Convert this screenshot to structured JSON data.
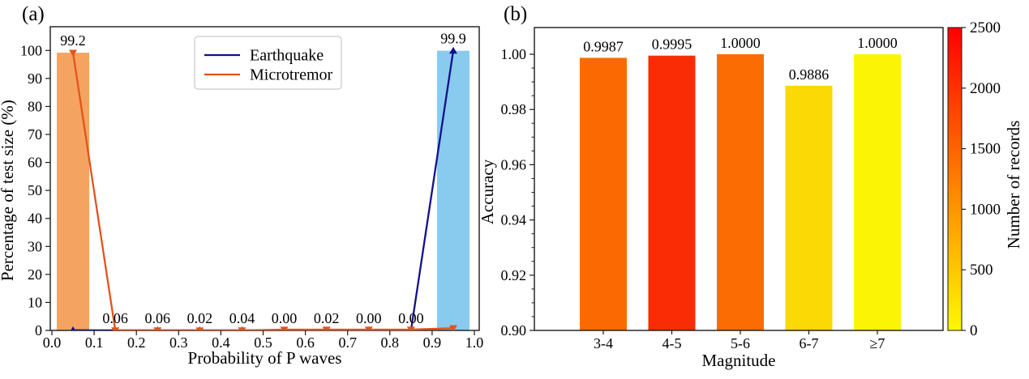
{
  "figure": {
    "background": "#ffffff"
  },
  "chart_data": [
    {
      "id": "a",
      "type": "bar+line",
      "panel_label": "(a)",
      "xlabel": "Probability of P waves",
      "ylabel": "Percentage of test size (%)",
      "xlim": [
        0.0,
        1.0
      ],
      "ylim": [
        0,
        100
      ],
      "xticks": [
        "0.0",
        "0.1",
        "0.2",
        "0.3",
        "0.4",
        "0.5",
        "0.6",
        "0.7",
        "0.8",
        "0.9",
        "1.0"
      ],
      "yticks": [
        0,
        10,
        20,
        30,
        40,
        50,
        60,
        70,
        80,
        90,
        100
      ],
      "x": [
        0.05,
        0.15,
        0.25,
        0.35,
        0.45,
        0.55,
        0.65,
        0.75,
        0.85,
        0.95
      ],
      "series": [
        {
          "name": "Earthquake",
          "color": "#11118B",
          "marker": "triangle-up",
          "values": [
            0.05,
            0.02,
            0.02,
            0.02,
            0.02,
            0.0,
            0.02,
            0.0,
            0.0,
            99.9
          ],
          "point_labels": [
            null,
            null,
            null,
            null,
            null,
            "0.00",
            "0.02",
            "0.00",
            "0.00",
            "99.9"
          ]
        },
        {
          "name": "Microtremor",
          "color": "#E4521B",
          "marker": "triangle-down",
          "values": [
            99.2,
            0.06,
            0.06,
            0.02,
            0.04,
            0.3,
            0.3,
            0.3,
            0.3,
            0.8
          ],
          "point_labels": [
            "99.2",
            "0.06",
            "0.06",
            "0.02",
            "0.04",
            null,
            null,
            null,
            null,
            null
          ]
        }
      ],
      "bars": [
        {
          "x": 0.05,
          "height": 99.2,
          "color": "#F4A460",
          "series": "Microtremor"
        },
        {
          "x": 0.95,
          "height": 99.9,
          "color": "#89CBEE",
          "series": "Earthquake"
        }
      ],
      "legend": {
        "position": "upper-left-of-center",
        "entries": [
          "Earthquake",
          "Microtremor"
        ]
      }
    },
    {
      "id": "b",
      "type": "bar",
      "panel_label": "(b)",
      "xlabel": "Magnitude",
      "ylabel": "Accuracy",
      "categories": [
        "3-4",
        "4-5",
        "5-6",
        "6-7",
        "≥7"
      ],
      "values": [
        0.9987,
        0.9995,
        1.0,
        0.9886,
        1.0
      ],
      "value_labels": [
        "0.9987",
        "0.9995",
        "1.0000",
        "0.9886",
        "1.0000"
      ],
      "bar_colors": [
        "#FB6A02",
        "#FA2C06",
        "#FB6C02",
        "#FAD905",
        "#FBF505"
      ],
      "ylim": [
        0.9,
        1.0
      ],
      "yticks": [
        "0.90",
        "0.92",
        "0.94",
        "0.96",
        "0.98",
        "1.00"
      ],
      "colorbar": {
        "label": "Number of records",
        "ticks": [
          0,
          500,
          1000,
          1500,
          2000,
          2500
        ],
        "range": [
          0,
          2500
        ],
        "bottom_color": "#FEF900",
        "top_color": "#FE0000",
        "colormap": "yellow-to-red"
      }
    }
  ]
}
